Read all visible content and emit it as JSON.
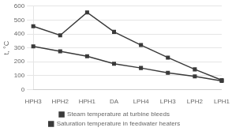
{
  "chart_data": {
    "type": "line",
    "categories": [
      "HPH3",
      "HPH2",
      "HPH1",
      "DA",
      "LPH4",
      "LPH3",
      "LPH2",
      "LPH1"
    ],
    "series": [
      {
        "name": "Steam temperature at turbine bleeds",
        "color": "#3a3a3a",
        "marker": "square",
        "line_style": "solid",
        "values": [
          455,
          390,
          555,
          415,
          320,
          230,
          145,
          68
        ]
      },
      {
        "name": "Saturation temperature in feedwater heaters",
        "color": "#3a3a3a",
        "marker": "square",
        "line_style": "solid",
        "values": [
          310,
          275,
          240,
          185,
          155,
          120,
          95,
          62
        ]
      }
    ],
    "ylabel": "t, °C",
    "ylim": [
      0,
      600
    ],
    "yticks": [
      0,
      100,
      200,
      300,
      400,
      500,
      600
    ],
    "grid": true,
    "legend": "bottom"
  }
}
